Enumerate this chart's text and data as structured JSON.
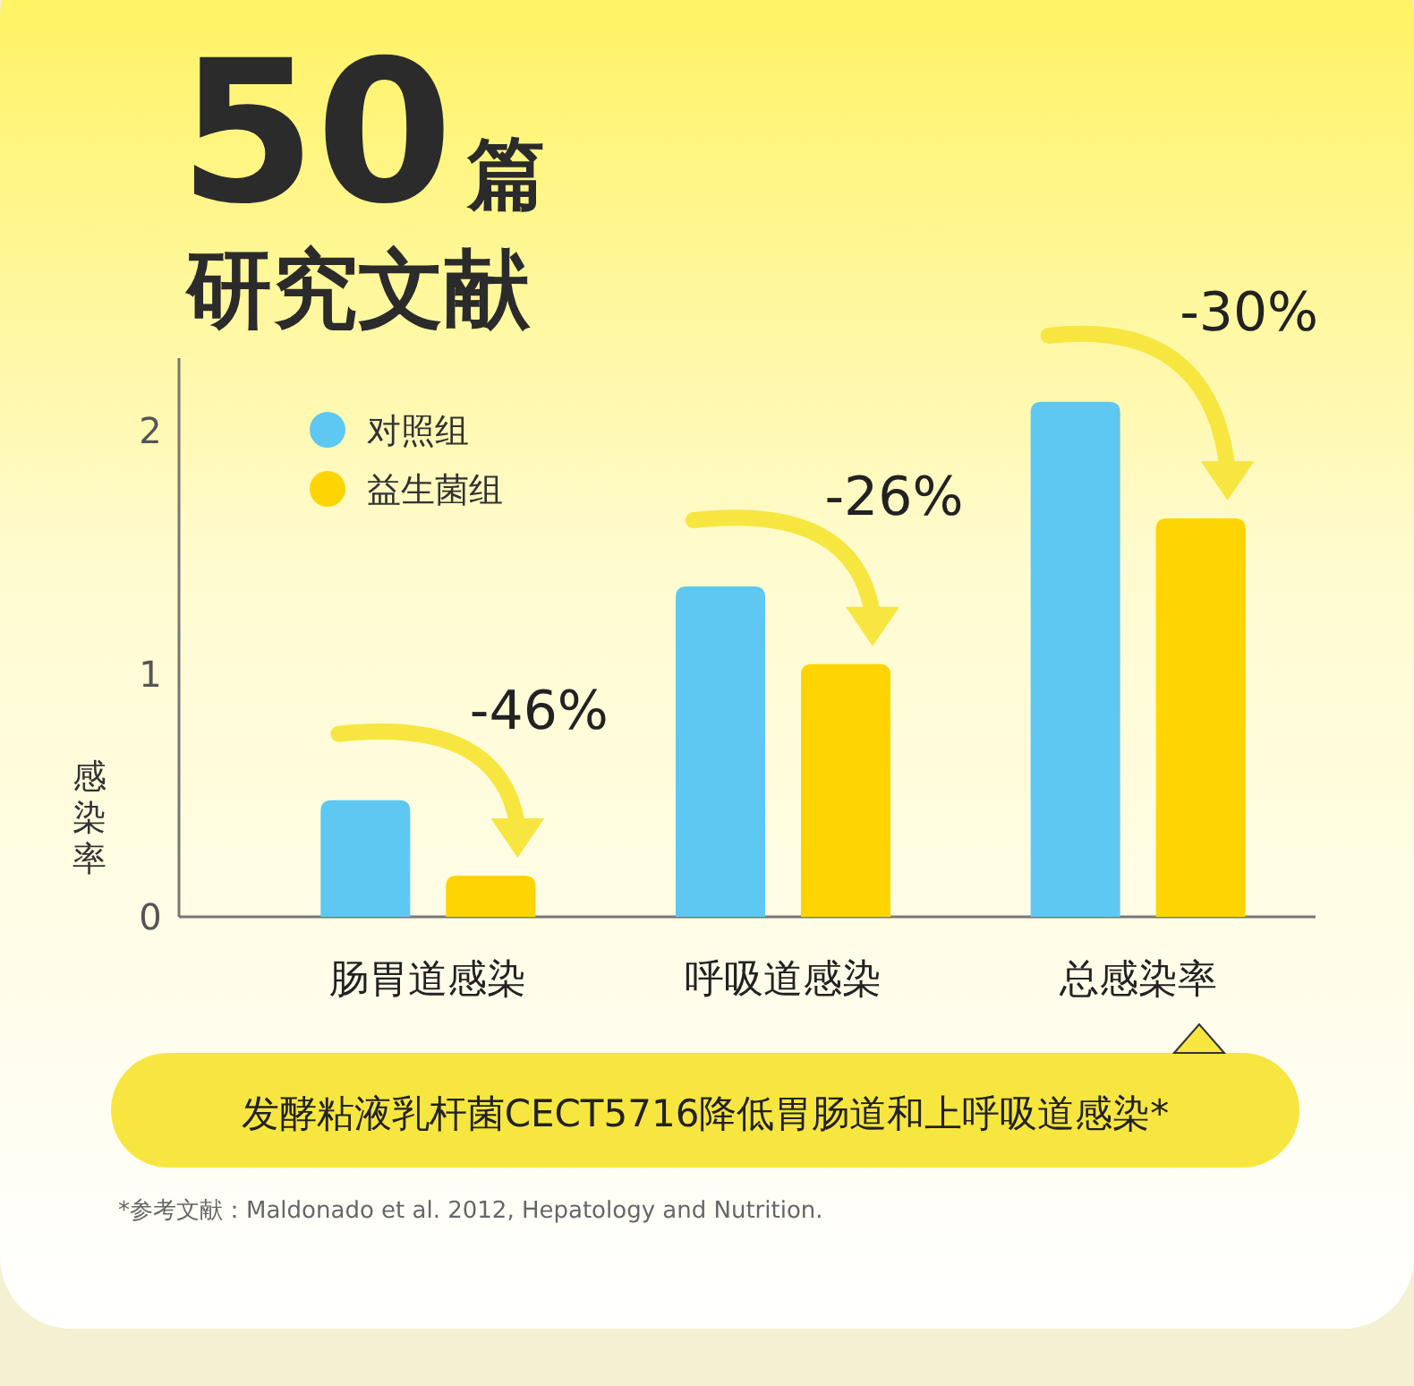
{
  "chart_data": {
    "type": "bar",
    "title": "50篇",
    "subtitle": "研究文献",
    "ylabel": "感染率",
    "categories": [
      "肠胃道感染",
      "呼吸道感染",
      "总感染率"
    ],
    "series": [
      {
        "name": "对照组",
        "color": "#5ec8f2",
        "values": [
          0.48,
          1.36,
          2.12
        ]
      },
      {
        "name": "益生菌组",
        "color": "#ffd400",
        "values": [
          0.17,
          1.04,
          1.64
        ]
      }
    ],
    "ylim": [
      0,
      2.3
    ],
    "yticks": [
      0,
      1,
      2
    ],
    "legend": "top left",
    "grid": false,
    "annotations": [
      "-46%",
      "-26%",
      "-30%",
      "发酵粘液乳杆菌CECT5716降低胃肠道和上呼吸道感染*",
      "*参考文献：Maldonado et al. 2012, Hepatology and Nutrition."
    ]
  }
}
